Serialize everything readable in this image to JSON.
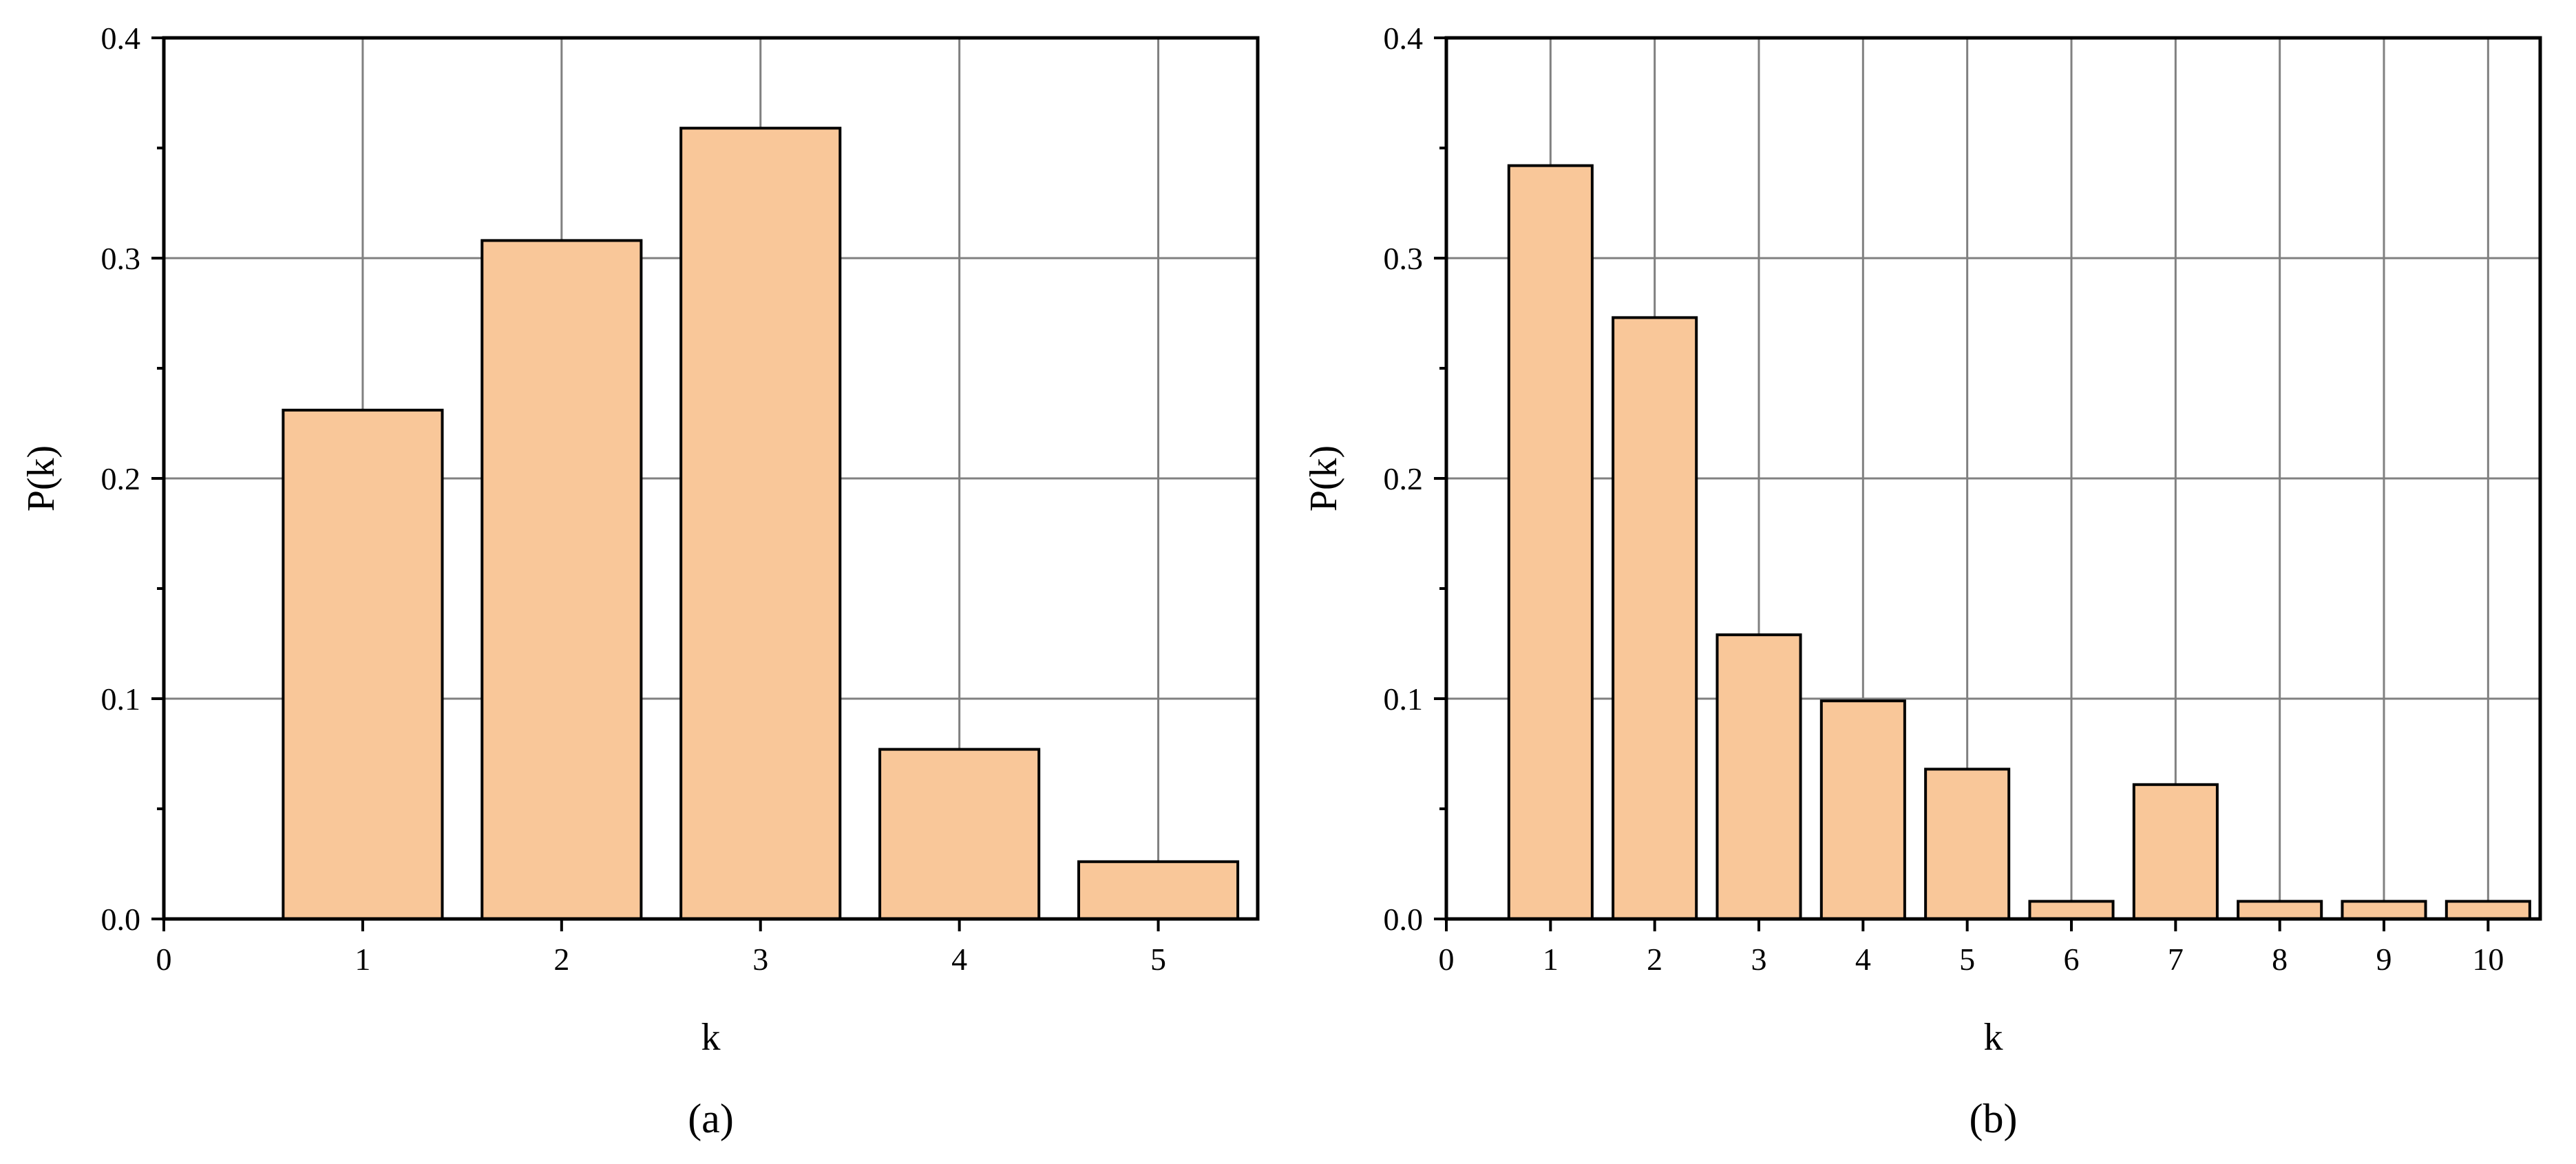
{
  "chart_data": [
    {
      "type": "bar",
      "panel_label": "(a)",
      "categories": [
        1,
        2,
        3,
        4,
        5
      ],
      "values": [
        0.231,
        0.308,
        0.359,
        0.077,
        0.026
      ],
      "xlabel": "k",
      "ylabel": "P(k)",
      "xlim": [
        0,
        5.5
      ],
      "ylim": [
        0,
        0.4
      ],
      "xticks": [
        "0",
        "1",
        "2",
        "3",
        "4",
        "5"
      ],
      "yticks": [
        "0.0",
        "0.1",
        "0.2",
        "0.3",
        "0.4"
      ],
      "grid": true,
      "bar_color": "#f9c799"
    },
    {
      "type": "bar",
      "panel_label": "(b)",
      "categories": [
        1,
        2,
        3,
        4,
        5,
        6,
        7,
        8,
        9,
        10
      ],
      "values": [
        0.342,
        0.273,
        0.129,
        0.099,
        0.068,
        0.008,
        0.061,
        0.008,
        0.008,
        0.008
      ],
      "xlabel": "k",
      "ylabel": "P(k)",
      "xlim": [
        0,
        10.5
      ],
      "ylim": [
        0,
        0.4
      ],
      "xticks": [
        "0",
        "1",
        "2",
        "3",
        "4",
        "5",
        "6",
        "7",
        "8",
        "9",
        "10"
      ],
      "yticks": [
        "0.0",
        "0.1",
        "0.2",
        "0.3",
        "0.4"
      ],
      "grid": true,
      "bar_color": "#f9c799"
    }
  ]
}
